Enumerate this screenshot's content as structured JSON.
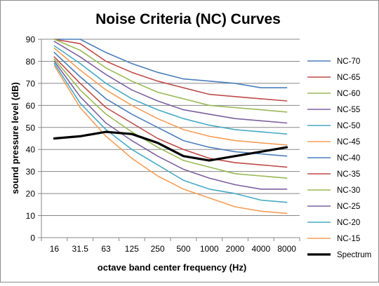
{
  "chart_data": {
    "type": "line",
    "title": "Noise Criteria (NC) Curves",
    "xlabel": "octave band center frequency (Hz)",
    "ylabel": "sound pressure level (dB)",
    "ylim": [
      0,
      90
    ],
    "yticks": [
      0,
      10,
      20,
      30,
      40,
      50,
      60,
      70,
      80,
      90
    ],
    "grid": true,
    "legend_position": "right",
    "categories": [
      "16",
      "31.5",
      "63",
      "125",
      "250",
      "500",
      "1000",
      "2000",
      "4000",
      "8000"
    ],
    "series": [
      {
        "name": "NC-70",
        "color": "#4a7ebb",
        "width": 1.6,
        "values": [
          90,
          90,
          84,
          79,
          75,
          72,
          71,
          70,
          68,
          68
        ]
      },
      {
        "name": "NC-65",
        "color": "#be4b48",
        "width": 1.6,
        "values": [
          90,
          88,
          80,
          75,
          71,
          68,
          65,
          64,
          63,
          62
        ]
      },
      {
        "name": "NC-60",
        "color": "#98b954",
        "width": 1.6,
        "values": [
          90,
          85,
          77,
          71,
          66,
          63,
          60,
          59,
          58,
          57
        ]
      },
      {
        "name": "NC-55",
        "color": "#7d60a0",
        "width": 1.6,
        "values": [
          89,
          82,
          74,
          67,
          62,
          58,
          56,
          54,
          53,
          52
        ]
      },
      {
        "name": "NC-50",
        "color": "#46aac4",
        "width": 1.6,
        "values": [
          87,
          79,
          70,
          63,
          58,
          54,
          51,
          49,
          48,
          47
        ]
      },
      {
        "name": "NC-45",
        "color": "#f59d56",
        "width": 1.6,
        "values": [
          86,
          76,
          67,
          60,
          54,
          49,
          46,
          44,
          43,
          42
        ]
      },
      {
        "name": "NC-40",
        "color": "#4a7ebb",
        "width": 1.6,
        "values": [
          84,
          73,
          63,
          56,
          50,
          44,
          41,
          39,
          38,
          37
        ]
      },
      {
        "name": "NC-35",
        "color": "#be4b48",
        "width": 1.6,
        "values": [
          82,
          70,
          59,
          52,
          45,
          40,
          36,
          34,
          33,
          32
        ]
      },
      {
        "name": "NC-30",
        "color": "#98b954",
        "width": 1.6,
        "values": [
          81,
          67,
          56,
          48,
          41,
          35,
          32,
          29,
          28,
          27
        ]
      },
      {
        "name": "NC-25",
        "color": "#7d60a0",
        "width": 1.6,
        "values": [
          80,
          64,
          52,
          44,
          37,
          31,
          27,
          24,
          22,
          22
        ]
      },
      {
        "name": "NC-20",
        "color": "#46aac4",
        "width": 1.6,
        "values": [
          79,
          61,
          49,
          40,
          33,
          26,
          22,
          20,
          17,
          16
        ]
      },
      {
        "name": "NC-15",
        "color": "#f59d56",
        "width": 1.6,
        "values": [
          78,
          59,
          46,
          36,
          28,
          22,
          18,
          14,
          12,
          11
        ]
      },
      {
        "name": "Spectrum",
        "color": "#000000",
        "width": 3.2,
        "values": [
          45,
          46,
          48,
          47,
          43,
          37,
          35,
          37,
          39,
          41
        ]
      }
    ]
  }
}
